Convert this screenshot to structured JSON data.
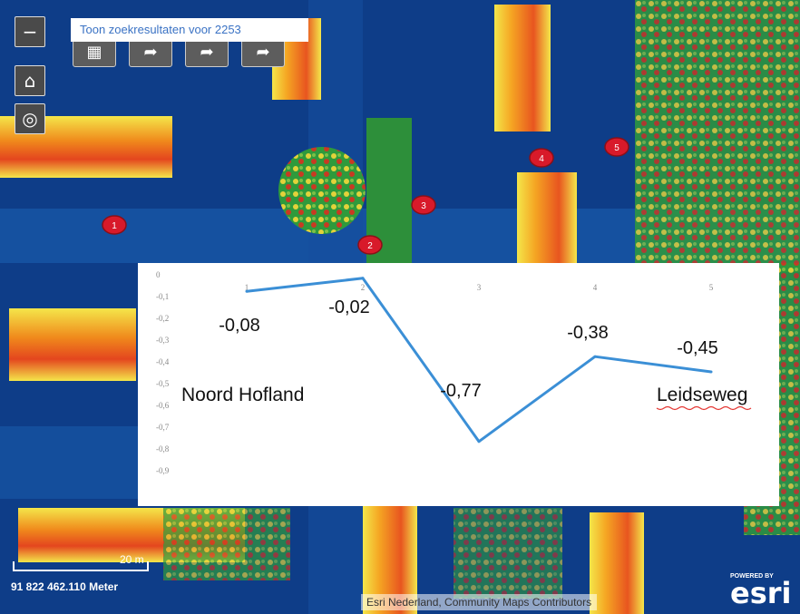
{
  "map": {
    "search_banner": "Toon zoekresultaten voor 2253",
    "buttons": {
      "zoom_out": "−",
      "home": "⌂",
      "locate": "◎"
    },
    "toolbar": [
      {
        "icon": "layers-icon"
      },
      {
        "icon": "share-icon"
      },
      {
        "icon": "share-icon"
      },
      {
        "icon": "share-icon"
      }
    ],
    "markers": [
      "1",
      "2",
      "3",
      "4",
      "5"
    ],
    "scale_label": "20 m",
    "coordinates": "91 822 462.110 Meter",
    "attribution": "Esri Nederland, Community Maps Contributors",
    "esri_powered": "POWERED BY",
    "esri_word": "esri"
  },
  "chart_data": {
    "type": "line",
    "x": [
      1,
      2,
      3,
      4,
      5
    ],
    "values": [
      -0.08,
      -0.02,
      -0.77,
      -0.38,
      -0.45
    ],
    "data_labels": [
      "-0,08",
      "-0,02",
      "-0,77",
      "-0,38",
      "-0,45"
    ],
    "x_tick_labels": [
      "1",
      "2",
      "3",
      "4",
      "5"
    ],
    "y_tick_labels": [
      "0",
      "-0,1",
      "-0,2",
      "-0,3",
      "-0,4",
      "-0,5",
      "-0,6",
      "-0,7",
      "-0,8",
      "-0,9"
    ],
    "ylim": [
      -0.9,
      0
    ],
    "annotations": {
      "left": "Noord Hofland",
      "right": "Leidseweg"
    },
    "line_color": "#3b8fd6",
    "grid": false
  }
}
